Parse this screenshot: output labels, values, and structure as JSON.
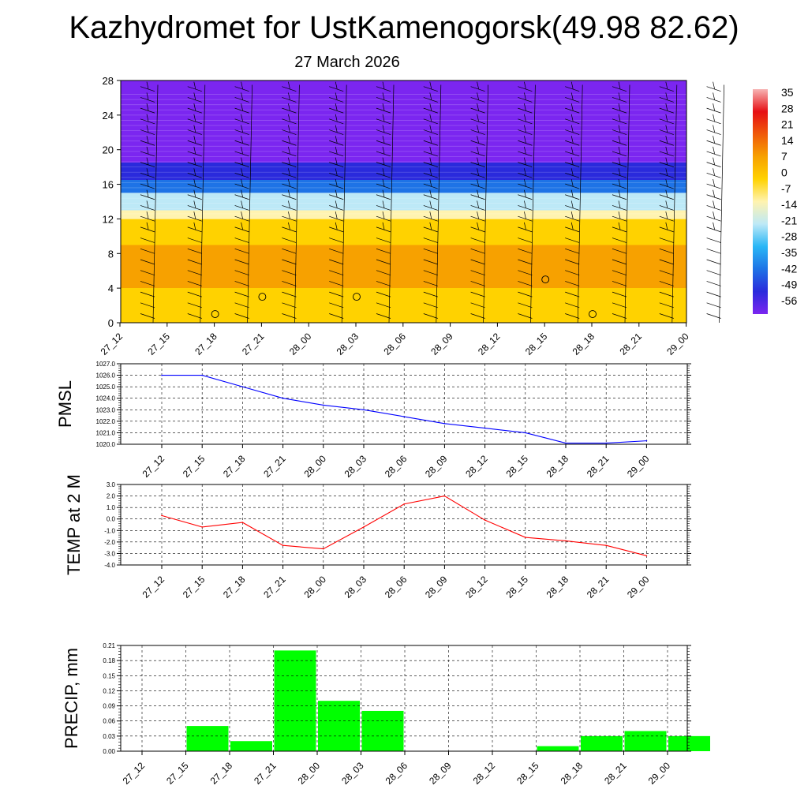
{
  "title": "Kazhydromet for UstKamenogorsk(49.98 82.62)",
  "subtitle": "27 March 2026",
  "colors": {
    "pmsl_line": "#0000ff",
    "temp_line": "#ff0000",
    "precip_bar": "#00ff00",
    "grid": "#000000"
  },
  "chart_data": [
    {
      "type": "heatmap",
      "title": "",
      "x": [
        "27_12",
        "27_15",
        "27_18",
        "27_21",
        "28_00",
        "28_03",
        "28_06",
        "28_09",
        "28_12",
        "28_15",
        "28_18",
        "28_21",
        "29_00"
      ],
      "ylim": [
        0,
        28
      ],
      "yticks": [
        "0",
        "4",
        "8",
        "12",
        "16",
        "20",
        "24",
        "28"
      ],
      "bands": [
        {
          "y_from": 0,
          "y_to": 4,
          "value": 2
        },
        {
          "y_from": 4,
          "y_to": 9,
          "value": 6
        },
        {
          "y_from": 9,
          "y_to": 12,
          "value": 2
        },
        {
          "y_from": 12,
          "y_to": 13,
          "value": -10
        },
        {
          "y_from": 13,
          "y_to": 15,
          "value": -25
        },
        {
          "y_from": 15,
          "y_to": 16.5,
          "value": -40
        },
        {
          "y_from": 16.5,
          "y_to": 18.5,
          "value": -52
        },
        {
          "y_from": 18.5,
          "y_to": 28,
          "value": -58
        }
      ],
      "colorbar": {
        "labels": [
          "35",
          "28",
          "21",
          "14",
          "7",
          "0",
          "-7",
          "-14",
          "-21",
          "-28",
          "-35",
          "-42",
          "-49",
          "-56"
        ],
        "stops": [
          "#f7b4b4",
          "#e60f14",
          "#f05a0a",
          "#f7a100",
          "#ffd200",
          "#fff3b0",
          "#bde9f7",
          "#29b6f6",
          "#1e73e6",
          "#2a2adc",
          "#7b26f0"
        ]
      },
      "circle_markers": [
        {
          "x": "27_18",
          "y": 1
        },
        {
          "x": "27_21",
          "y": 3
        },
        {
          "x": "28_03",
          "y": 3
        },
        {
          "x": "28_15",
          "y": 5
        },
        {
          "x": "28_18",
          "y": 1
        }
      ]
    },
    {
      "type": "line",
      "ylabel": "PMSL",
      "x": [
        "27_12",
        "27_15",
        "27_18",
        "27_21",
        "28_00",
        "28_03",
        "28_06",
        "28_09",
        "28_12",
        "28_15",
        "28_18",
        "28_21",
        "29_00"
      ],
      "series": [
        {
          "values": [
            1026.0,
            1026.0,
            1025.0,
            1024.0,
            1023.4,
            1023.0,
            1022.4,
            1021.8,
            1021.4,
            1021.0,
            1020.1,
            1020.1,
            1020.3
          ]
        }
      ],
      "ylim": [
        1020.0,
        1027.0
      ],
      "yticks": [
        "1027.0",
        "1026.0",
        "1025.0",
        "1024.0",
        "1023.0",
        "1022.0",
        "1021.0",
        "1020.0"
      ]
    },
    {
      "type": "line",
      "ylabel": "TEMP at 2 M",
      "x": [
        "27_12",
        "27_15",
        "27_18",
        "27_21",
        "28_00",
        "28_03",
        "28_06",
        "28_09",
        "28_12",
        "28_15",
        "28_18",
        "28_21",
        "29_00"
      ],
      "series": [
        {
          "values": [
            0.3,
            -0.7,
            -0.3,
            -2.3,
            -2.6,
            -0.7,
            1.3,
            2.0,
            -0.1,
            -1.6,
            -1.9,
            -2.3,
            -3.2
          ]
        }
      ],
      "ylim": [
        -4.0,
        3.0
      ],
      "yticks": [
        "3.0",
        "2.0",
        "1.0",
        "0.0",
        "-1.0",
        "-2.0",
        "-3.0",
        "-4.0"
      ]
    },
    {
      "type": "bar",
      "ylabel": "PRECIP, mm",
      "categories": [
        "27_12",
        "27_15",
        "27_18",
        "27_21",
        "28_00",
        "28_03",
        "28_06",
        "28_09",
        "28_12",
        "28_15",
        "28_18",
        "28_21",
        "29_00"
      ],
      "values": [
        0.0,
        0.05,
        0.02,
        0.2,
        0.1,
        0.08,
        0.0,
        0.0,
        0.0,
        0.01,
        0.03,
        0.04,
        0.03
      ],
      "ylim": [
        0.0,
        0.21
      ],
      "yticks": [
        "0.21",
        "0.18",
        "0.15",
        "0.12",
        "0.09",
        "0.06",
        "0.03",
        "0.00"
      ]
    }
  ]
}
